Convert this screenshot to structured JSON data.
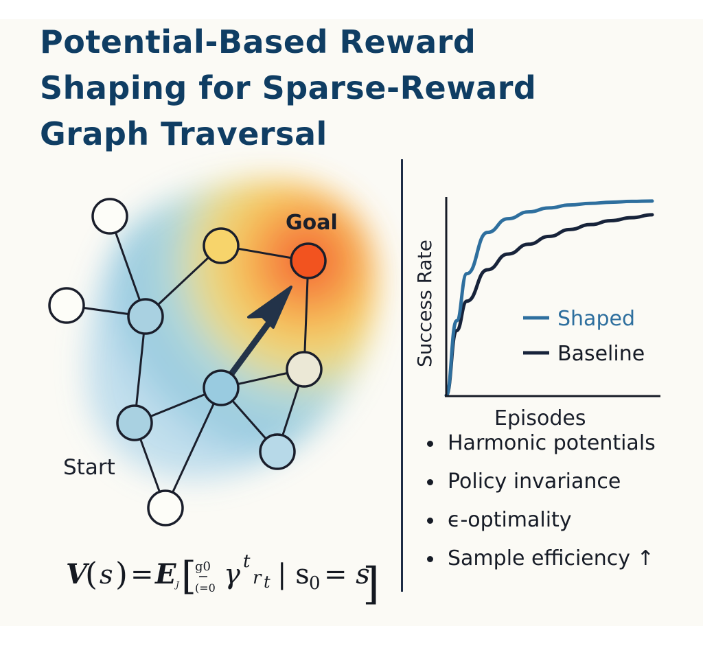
{
  "title_lines": [
    "Potential-Based Reward",
    "Shaping for Sparse-Reward",
    "Graph Traversal"
  ],
  "graph": {
    "goal_label": "Goal",
    "start_label": "Start"
  },
  "chart_data": {
    "type": "line",
    "title": "",
    "xlabel": "Episodes",
    "ylabel": "Success Rate",
    "x": [
      0,
      0.05,
      0.1,
      0.2,
      0.3,
      0.4,
      0.5,
      0.6,
      0.7,
      0.8,
      0.9,
      1.0
    ],
    "series": [
      {
        "name": "Shaped",
        "color": "#2e6f9e",
        "values": [
          0,
          0.38,
          0.62,
          0.83,
          0.9,
          0.935,
          0.955,
          0.97,
          0.978,
          0.984,
          0.988,
          0.99
        ]
      },
      {
        "name": "Baseline",
        "color": "#17233a",
        "values": [
          0,
          0.33,
          0.48,
          0.64,
          0.72,
          0.77,
          0.81,
          0.845,
          0.87,
          0.89,
          0.905,
          0.92
        ]
      }
    ],
    "xlim": [
      0,
      1
    ],
    "ylim": [
      0,
      1
    ],
    "grid": false,
    "legend_position": "bottom-right"
  },
  "bullets": [
    "Harmonic potentials",
    "Policy invariance",
    "ϵ-optimality",
    "Sample efficiency ↑"
  ],
  "formula": {
    "lhs": "V",
    "arg": "s",
    "eq": "=",
    "op": "E",
    "op_sub": "J",
    "sum_top": "g0",
    "sum_bot": "(=0",
    "gamma": "γ",
    "gamma_sup": "t",
    "r": "r",
    "r_sub": "t",
    "cond": "| s",
    "cond_sub": "0",
    "rhs": "= s"
  }
}
